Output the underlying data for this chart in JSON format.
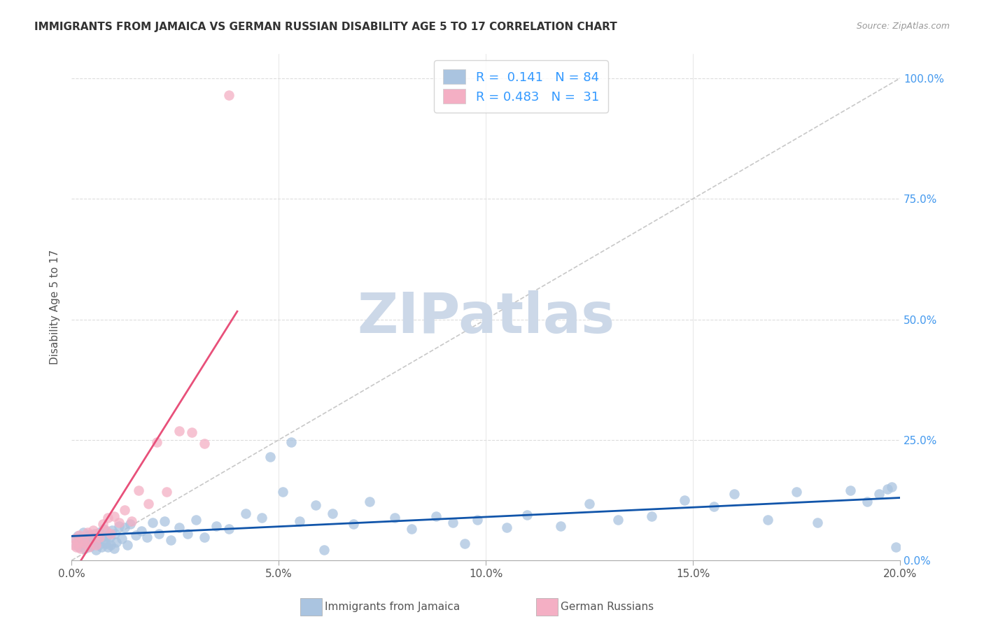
{
  "title": "IMMIGRANTS FROM JAMAICA VS GERMAN RUSSIAN DISABILITY AGE 5 TO 17 CORRELATION CHART",
  "source": "Source: ZipAtlas.com",
  "ylabel_label": "Disability Age 5 to 17",
  "r_jamaica": 0.141,
  "n_jamaica": 84,
  "r_german": 0.483,
  "n_german": 31,
  "color_jamaica": "#aac4e0",
  "color_german": "#f4afc4",
  "line_color_jamaica": "#1155aa",
  "line_color_german": "#e8507a",
  "diagonal_color": "#c8c8c8",
  "background": "#ffffff",
  "watermark_color": "#ccd8e8",
  "j_x": [
    0.08,
    0.12,
    0.15,
    0.18,
    0.22,
    0.25,
    0.28,
    0.32,
    0.35,
    0.38,
    0.42,
    0.45,
    0.48,
    0.52,
    0.55,
    0.58,
    0.62,
    0.65,
    0.68,
    0.72,
    0.75,
    0.78,
    0.82,
    0.85,
    0.88,
    0.92,
    0.95,
    0.98,
    1.02,
    1.05,
    1.08,
    1.15,
    1.22,
    1.28,
    1.35,
    1.42,
    1.55,
    1.68,
    1.82,
    1.95,
    2.1,
    2.25,
    2.4,
    2.6,
    2.8,
    3.0,
    3.2,
    3.5,
    3.8,
    4.2,
    4.6,
    5.1,
    5.5,
    5.9,
    6.3,
    6.8,
    7.2,
    7.8,
    8.2,
    8.8,
    9.2,
    9.8,
    10.5,
    11.0,
    11.8,
    12.5,
    13.2,
    14.0,
    14.8,
    15.5,
    16.0,
    16.8,
    17.5,
    18.0,
    18.8,
    19.2,
    19.5,
    19.7,
    19.8,
    19.9,
    4.8,
    5.3,
    9.5,
    6.1
  ],
  "j_y": [
    4.5,
    3.2,
    5.1,
    2.8,
    4.2,
    3.5,
    5.8,
    2.5,
    4.8,
    3.1,
    5.2,
    2.9,
    4.1,
    3.8,
    5.5,
    2.2,
    4.5,
    3.2,
    5.8,
    2.8,
    4.2,
    6.5,
    3.5,
    5.1,
    2.8,
    4.8,
    3.2,
    6.2,
    2.5,
    5.5,
    3.8,
    7.2,
    4.5,
    6.8,
    3.2,
    7.5,
    5.2,
    6.1,
    4.8,
    7.8,
    5.5,
    8.2,
    4.2,
    6.8,
    5.5,
    8.5,
    4.8,
    7.2,
    6.5,
    9.8,
    8.8,
    14.2,
    8.2,
    11.5,
    9.8,
    7.5,
    12.2,
    8.8,
    6.5,
    9.2,
    7.8,
    8.5,
    6.8,
    9.5,
    7.2,
    11.8,
    8.5,
    9.2,
    12.5,
    11.2,
    13.8,
    8.5,
    14.2,
    7.8,
    14.5,
    12.2,
    13.8,
    14.8,
    15.2,
    2.8,
    21.5,
    24.5,
    3.5,
    2.2
  ],
  "g_x": [
    0.05,
    0.08,
    0.12,
    0.15,
    0.18,
    0.22,
    0.28,
    0.32,
    0.38,
    0.42,
    0.48,
    0.52,
    0.58,
    0.62,
    0.68,
    0.75,
    0.82,
    0.88,
    0.95,
    1.02,
    1.15,
    1.28,
    1.45,
    1.62,
    1.85,
    2.05,
    2.3,
    2.6,
    2.9,
    3.2,
    3.8
  ],
  "g_y": [
    3.2,
    4.5,
    2.8,
    3.8,
    5.2,
    2.5,
    4.2,
    3.5,
    5.8,
    2.8,
    4.5,
    6.2,
    3.2,
    5.5,
    4.8,
    7.5,
    6.2,
    8.8,
    5.5,
    9.2,
    7.8,
    10.5,
    8.2,
    14.5,
    11.8,
    24.5,
    14.2,
    26.8,
    26.5,
    24.2,
    96.5
  ]
}
